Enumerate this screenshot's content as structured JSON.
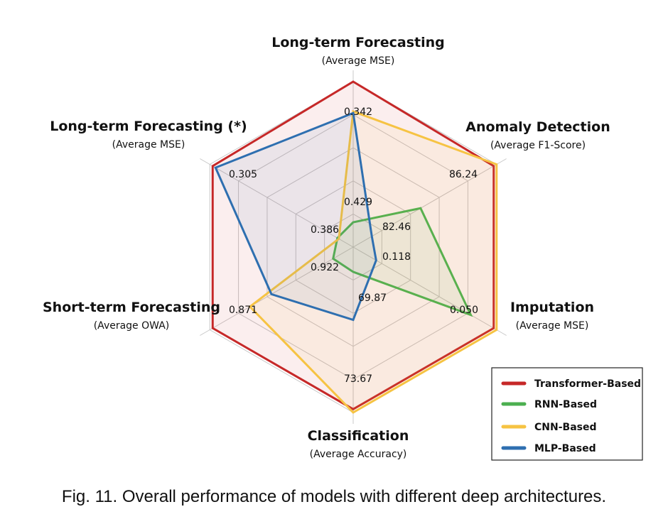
{
  "caption": "Fig. 11. Overall performance of models with different deep architectures.",
  "chart_data": {
    "type": "radar",
    "axes": [
      {
        "title": "Long-term Forecasting",
        "subtitle": "(Average MSE)",
        "outer_label": "0.342",
        "inner_label": "0.429"
      },
      {
        "title": "Anomaly Detection",
        "subtitle": "(Average F1-Score)",
        "outer_label": "86.24",
        "inner_label": "82.46"
      },
      {
        "title": "Imputation",
        "subtitle": "(Average MSE)",
        "outer_label": "0.050",
        "inner_label": "0.118"
      },
      {
        "title": "Classification",
        "subtitle": "(Average Accuracy)",
        "outer_label": "73.67",
        "inner_label": "69.87"
      },
      {
        "title": "Short-term Forecasting",
        "subtitle": "(Average OWA)",
        "outer_label": "0.871",
        "inner_label": "0.922"
      },
      {
        "title": "Long-term Forecasting (*)",
        "subtitle": "(Average MSE)",
        "outer_label": "0.305",
        "inner_label": "0.386"
      }
    ],
    "rings": 5,
    "scale": [
      0,
      1
    ],
    "series": [
      {
        "name": "Transformer-Based",
        "color": "#c62828",
        "values": [
          1.0,
          0.98,
          0.98,
          0.98,
          0.98,
          0.98
        ]
      },
      {
        "name": "RNN-Based",
        "color": "#4caf50",
        "values": [
          0.15,
          0.47,
          0.82,
          0.15,
          0.14,
          0.11
        ]
      },
      {
        "name": "CNN-Based",
        "color": "#f6c343",
        "values": [
          0.82,
          1.0,
          1.0,
          1.0,
          0.72,
          0.1
        ]
      },
      {
        "name": "MLP-Based",
        "color": "#2e6fb0",
        "values": [
          0.81,
          0.13,
          0.16,
          0.44,
          0.57,
          0.96
        ]
      }
    ],
    "legend": "bottom-right"
  }
}
